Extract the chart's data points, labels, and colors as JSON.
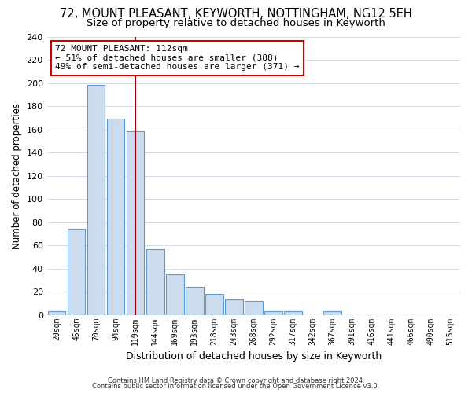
{
  "title": "72, MOUNT PLEASANT, KEYWORTH, NOTTINGHAM, NG12 5EH",
  "subtitle": "Size of property relative to detached houses in Keyworth",
  "xlabel": "Distribution of detached houses by size in Keyworth",
  "ylabel": "Number of detached properties",
  "bar_labels": [
    "20sqm",
    "45sqm",
    "70sqm",
    "94sqm",
    "119sqm",
    "144sqm",
    "169sqm",
    "193sqm",
    "218sqm",
    "243sqm",
    "268sqm",
    "292sqm",
    "317sqm",
    "342sqm",
    "367sqm",
    "391sqm",
    "416sqm",
    "441sqm",
    "466sqm",
    "490sqm",
    "515sqm"
  ],
  "bar_values": [
    3,
    74,
    198,
    169,
    158,
    57,
    35,
    24,
    18,
    13,
    12,
    3,
    3,
    0,
    3,
    0,
    0,
    0,
    0,
    0,
    0
  ],
  "bar_fill_color": "#ccdcef",
  "bar_edge_color": "#5b9bd5",
  "vline_index": 4,
  "vline_color": "#990000",
  "ylim": [
    0,
    240
  ],
  "yticks": [
    0,
    20,
    40,
    60,
    80,
    100,
    120,
    140,
    160,
    180,
    200,
    220,
    240
  ],
  "annotation_title": "72 MOUNT PLEASANT: 112sqm",
  "annotation_line1": "← 51% of detached houses are smaller (388)",
  "annotation_line2": "49% of semi-detached houses are larger (371) →",
  "annotation_box_facecolor": "#ffffff",
  "annotation_box_edgecolor": "#cc0000",
  "footer1": "Contains HM Land Registry data © Crown copyright and database right 2024.",
  "footer2": "Contains public sector information licensed under the Open Government Licence v3.0.",
  "title_fontsize": 10.5,
  "subtitle_fontsize": 9.5,
  "ylabel_fontsize": 8.5,
  "xlabel_fontsize": 9,
  "tick_fontsize": 8,
  "xtick_fontsize": 7,
  "annotation_fontsize": 8,
  "footer_fontsize": 6,
  "background_color": "#ffffff",
  "grid_color": "#d0dce8"
}
